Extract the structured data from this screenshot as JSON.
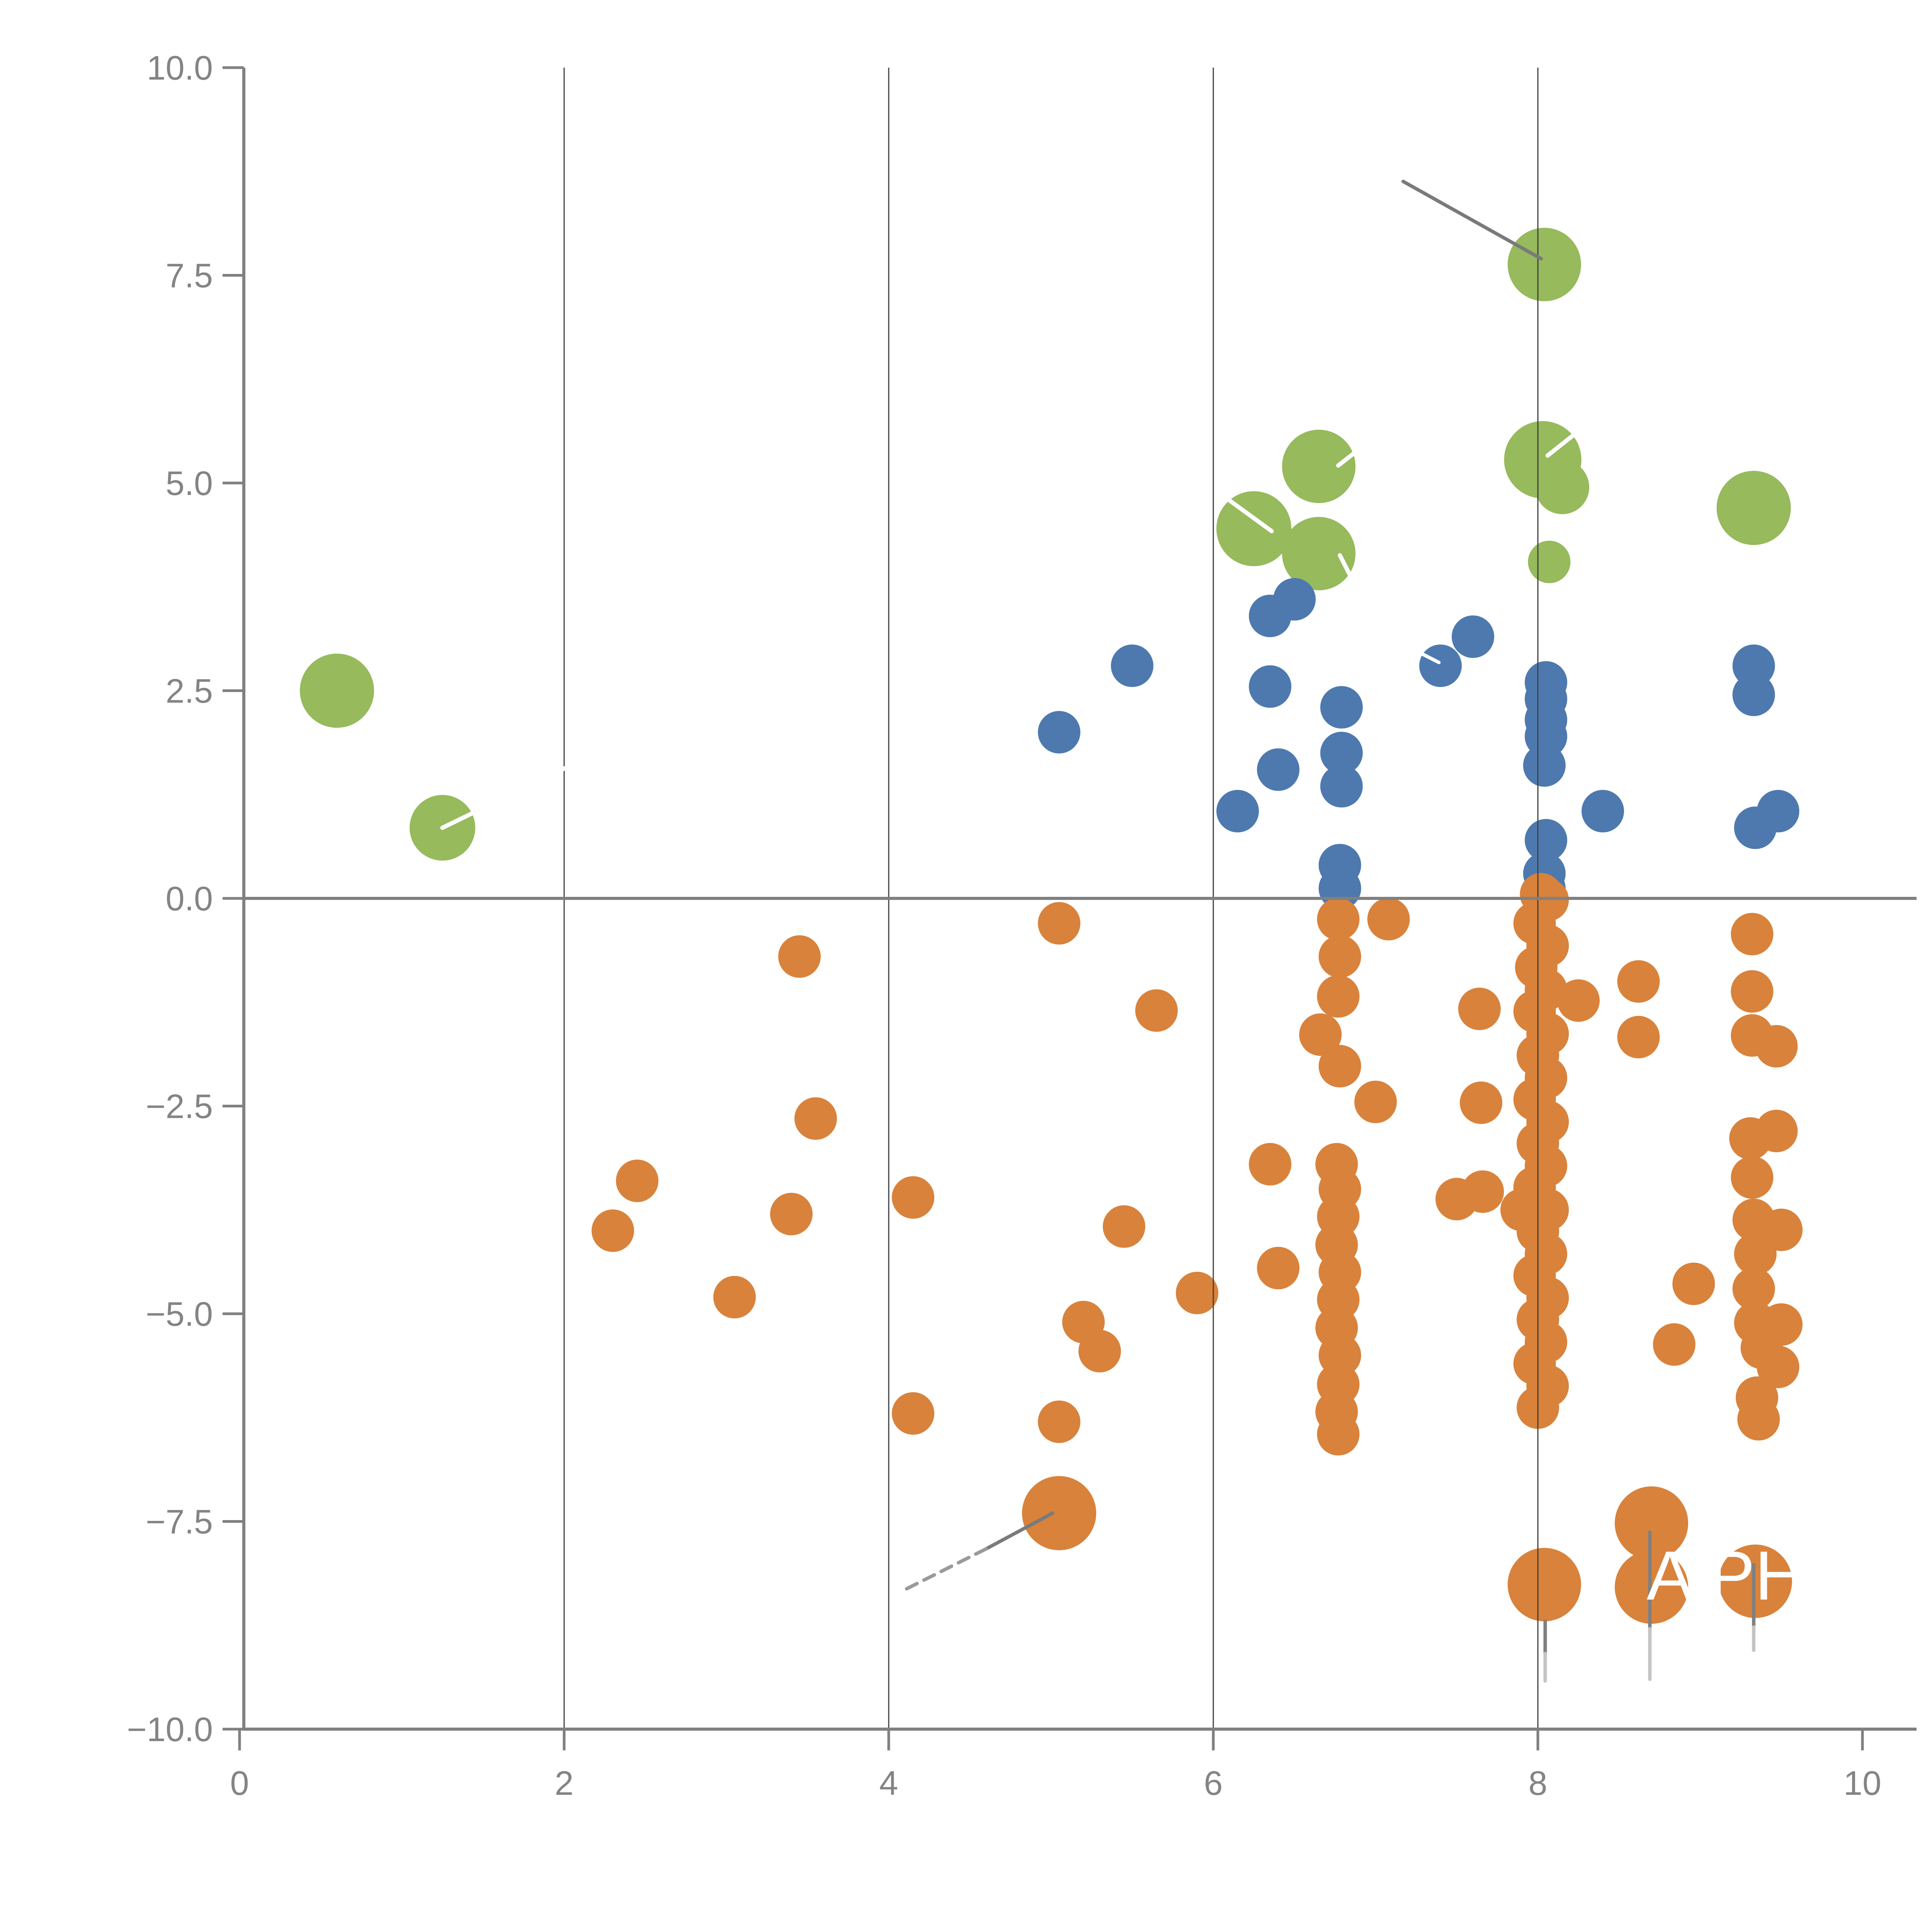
{
  "chart_data": {
    "type": "scatter",
    "title": "",
    "xlabel": "",
    "ylabel": "",
    "xlim": [
      0,
      10
    ],
    "ylim": [
      -10,
      10
    ],
    "grid": "vertical-only",
    "legend": "none",
    "x_ticks": [
      {
        "v": 0,
        "label": "0"
      },
      {
        "v": 2,
        "label": "2"
      },
      {
        "v": 4,
        "label": "4"
      },
      {
        "v": 6,
        "label": "6"
      },
      {
        "v": 8,
        "label": "8"
      },
      {
        "v": 10,
        "label": "10"
      }
    ],
    "y_ticks": [
      {
        "v": 10,
        "label": "10.0"
      },
      {
        "v": 7.5,
        "label": "7.5"
      },
      {
        "v": 5,
        "label": "5.0"
      },
      {
        "v": 2.5,
        "label": "2.5"
      },
      {
        "v": 0,
        "label": "0.0"
      },
      {
        "v": -2.5,
        "label": "−2.5"
      },
      {
        "v": -5,
        "label": "−5.0"
      },
      {
        "v": -7.5,
        "label": "−7.5"
      },
      {
        "v": -10,
        "label": "−10.0"
      }
    ],
    "x_gridlines": [
      2,
      4,
      6,
      8
    ],
    "pixel_mapping": {
      "x0": 620,
      "x_per_unit": 420,
      "y0": 2325,
      "y_per_unit": 215,
      "spine_x": 631,
      "axis_bottom_y": 4475,
      "axis_top_y": 175,
      "axis_right_x": 4960,
      "tick_len": 55
    },
    "axis_color": "#808080",
    "gridline_color": "#3f3f3f",
    "tick_label_color": "#848484",
    "series": [
      {
        "name": "green-bubbles",
        "color": "#96ba5c",
        "default_r": 55,
        "points": [
          [
            0.6,
            2.5,
            96
          ],
          [
            1.25,
            0.85,
            85
          ],
          [
            6.25,
            4.45,
            97
          ],
          [
            6.65,
            5.2,
            95
          ],
          [
            6.65,
            4.15,
            95
          ],
          [
            8.04,
            7.63,
            95
          ],
          [
            8.03,
            5.28,
            100
          ],
          [
            8.15,
            4.95,
            70
          ],
          [
            8.07,
            4.05,
            55
          ],
          [
            9.33,
            4.7,
            96
          ]
        ]
      },
      {
        "name": "blue-dots",
        "color": "#4d79af",
        "default_r": 55,
        "points": [
          [
            5.05,
            2.0
          ],
          [
            5.5,
            2.8
          ],
          [
            6.15,
            1.05
          ],
          [
            6.35,
            3.4
          ],
          [
            6.5,
            3.6
          ],
          [
            6.35,
            2.55
          ],
          [
            6.4,
            1.55
          ],
          [
            6.79,
            2.3
          ],
          [
            6.79,
            1.75
          ],
          [
            6.79,
            1.35
          ],
          [
            6.78,
            0.4
          ],
          [
            6.78,
            0.12
          ],
          [
            7.4,
            2.8
          ],
          [
            7.6,
            3.15
          ],
          [
            8.05,
            2.6
          ],
          [
            8.05,
            2.4
          ],
          [
            8.05,
            2.15
          ],
          [
            8.05,
            1.95
          ],
          [
            8.04,
            1.6
          ],
          [
            8.05,
            0.7
          ],
          [
            8.04,
            0.3
          ],
          [
            8.04,
            0.12
          ],
          [
            8.4,
            1.05
          ],
          [
            9.33,
            2.8
          ],
          [
            9.33,
            2.45
          ],
          [
            9.48,
            1.05
          ],
          [
            9.34,
            0.85
          ]
        ]
      },
      {
        "name": "orange-dots",
        "color": "#d9823b",
        "default_r": 55,
        "points": [
          [
            3.45,
            -0.7
          ],
          [
            5.05,
            -0.3
          ],
          [
            3.55,
            -2.65
          ],
          [
            2.45,
            -3.4
          ],
          [
            2.3,
            -4.0
          ],
          [
            3.4,
            -3.8
          ],
          [
            3.05,
            -4.8
          ],
          [
            4.15,
            -3.6
          ],
          [
            5.45,
            -3.95
          ],
          [
            5.2,
            -5.1
          ],
          [
            5.3,
            -5.45
          ],
          [
            4.15,
            -6.2
          ],
          [
            5.05,
            -6.3
          ],
          [
            5.65,
            -1.35
          ],
          [
            6.35,
            -3.2
          ],
          [
            6.4,
            -4.45
          ],
          [
            5.9,
            -4.75
          ],
          [
            7.08,
            -0.25
          ],
          [
            7.0,
            -2.45
          ],
          [
            7.64,
            -1.33
          ],
          [
            7.65,
            -2.46
          ],
          [
            7.5,
            -3.62
          ],
          [
            7.66,
            -3.53
          ],
          [
            7.9,
            -3.75
          ],
          [
            8.25,
            -1.23
          ],
          [
            8.62,
            -1.0
          ],
          [
            8.62,
            -1.67
          ],
          [
            8.96,
            -4.64
          ],
          [
            8.84,
            -5.37
          ],
          [
            9.32,
            -0.43
          ],
          [
            6.77,
            -0.25
          ],
          [
            6.78,
            -0.7
          ],
          [
            6.77,
            -1.18
          ],
          [
            6.66,
            -1.64
          ],
          [
            6.78,
            -2.02
          ],
          [
            6.76,
            -3.2
          ],
          [
            6.78,
            -3.5
          ],
          [
            6.77,
            -3.83
          ],
          [
            6.76,
            -4.17
          ],
          [
            6.78,
            -4.5
          ],
          [
            6.77,
            -4.83
          ],
          [
            6.76,
            -5.17
          ],
          [
            6.78,
            -5.5
          ],
          [
            6.77,
            -5.85
          ],
          [
            6.76,
            -6.18
          ],
          [
            6.77,
            -6.45
          ],
          [
            8.02,
            0.05
          ],
          [
            8.06,
            -0.02
          ],
          [
            7.98,
            -0.3
          ],
          [
            8.06,
            -0.57
          ],
          [
            7.99,
            -0.83
          ],
          [
            8.05,
            -1.1
          ],
          [
            7.98,
            -1.36
          ],
          [
            8.06,
            -1.63
          ],
          [
            8.0,
            -1.89
          ],
          [
            8.05,
            -2.16
          ],
          [
            7.98,
            -2.42
          ],
          [
            8.06,
            -2.69
          ],
          [
            8.0,
            -2.95
          ],
          [
            8.05,
            -3.22
          ],
          [
            7.98,
            -3.48
          ],
          [
            8.06,
            -3.75
          ],
          [
            8.0,
            -4.01
          ],
          [
            8.05,
            -4.28
          ],
          [
            7.98,
            -4.54
          ],
          [
            8.06,
            -4.81
          ],
          [
            8.0,
            -5.07
          ],
          [
            8.05,
            -5.34
          ],
          [
            7.98,
            -5.6
          ],
          [
            8.06,
            -5.87
          ],
          [
            8.0,
            -6.13
          ],
          [
            9.32,
            -1.12
          ],
          [
            9.32,
            -1.65
          ],
          [
            9.47,
            -1.78
          ],
          [
            9.47,
            -2.8
          ],
          [
            9.31,
            -2.89
          ],
          [
            9.32,
            -3.36
          ],
          [
            9.33,
            -3.87
          ],
          [
            9.34,
            -4.28
          ],
          [
            9.5,
            -3.99
          ],
          [
            9.33,
            -4.7
          ],
          [
            9.34,
            -5.11
          ],
          [
            9.5,
            -5.13
          ],
          [
            9.38,
            -5.41
          ],
          [
            9.48,
            -5.64
          ],
          [
            9.35,
            -6.01
          ],
          [
            9.36,
            -6.27
          ],
          [
            5.05,
            -7.4,
            96
          ],
          [
            8.04,
            -8.26,
            95
          ],
          [
            8.7,
            -7.52,
            95
          ],
          [
            8.7,
            -8.29,
            95
          ],
          [
            9.34,
            -8.22,
            95
          ]
        ]
      }
    ],
    "leader_lines": [
      {
        "x1": 7.17,
        "y1": 8.63,
        "x2": 8.02,
        "y2": 7.7,
        "color": "#7a7a7a",
        "w": 9
      },
      {
        "x1": 5.01,
        "y1": -7.4,
        "x2": 4.6,
        "y2": -7.83,
        "color": "#7a7a7a",
        "w": 9
      },
      {
        "x1": 4.6,
        "y1": -7.83,
        "x2": 4.07,
        "y2": -8.35,
        "color": "#9a9a9a",
        "w": 9,
        "dash": "30 20"
      },
      {
        "x1": 8.045,
        "y1": -8.7,
        "x2": 8.045,
        "y2": -9.09,
        "color": "#808080",
        "w": 9
      },
      {
        "x1": 8.045,
        "y1": -9.09,
        "x2": 8.045,
        "y2": -9.42,
        "color": "#c4c4c4",
        "w": 9
      },
      {
        "x1": 8.69,
        "y1": -7.63,
        "x2": 8.69,
        "y2": -8.79,
        "color": "#808080",
        "w": 9
      },
      {
        "x1": 8.69,
        "y1": -8.79,
        "x2": 8.69,
        "y2": -9.4,
        "color": "#c4c4c4",
        "w": 9
      },
      {
        "x1": 9.33,
        "y1": -8.02,
        "x2": 9.33,
        "y2": -8.77,
        "color": "#808080",
        "w": 9
      },
      {
        "x1": 9.33,
        "y1": -8.77,
        "x2": 9.33,
        "y2": -9.05,
        "color": "#c4c4c4",
        "w": 9
      },
      {
        "x1": 6.77,
        "y1": 5.21,
        "x2": 7.2,
        "y2": 5.87,
        "color": "#ffffff",
        "w": 11
      },
      {
        "x1": 6.1,
        "y1": 4.79,
        "x2": 6.36,
        "y2": 4.42,
        "color": "#ffffff",
        "w": 11
      },
      {
        "x1": 6.78,
        "y1": 4.13,
        "x2": 7.05,
        "y2": 3.09,
        "color": "#ffffff",
        "w": 11
      },
      {
        "x1": 8.06,
        "y1": 5.33,
        "x2": 8.57,
        "y2": 6.12,
        "color": "#ffffff",
        "w": 11
      },
      {
        "x1": 1.25,
        "y1": 0.85,
        "x2": 2.24,
        "y2": 1.79,
        "color": "#ffffff",
        "w": 11
      },
      {
        "x1": 7.23,
        "y1": 3.0,
        "x2": 7.39,
        "y2": 2.84,
        "color": "#ffffff",
        "w": 9
      }
    ],
    "annotation_label": {
      "text": "A PH",
      "x": 8.67,
      "y": -8.44,
      "font_px": 180,
      "color": "#ffffff"
    }
  }
}
